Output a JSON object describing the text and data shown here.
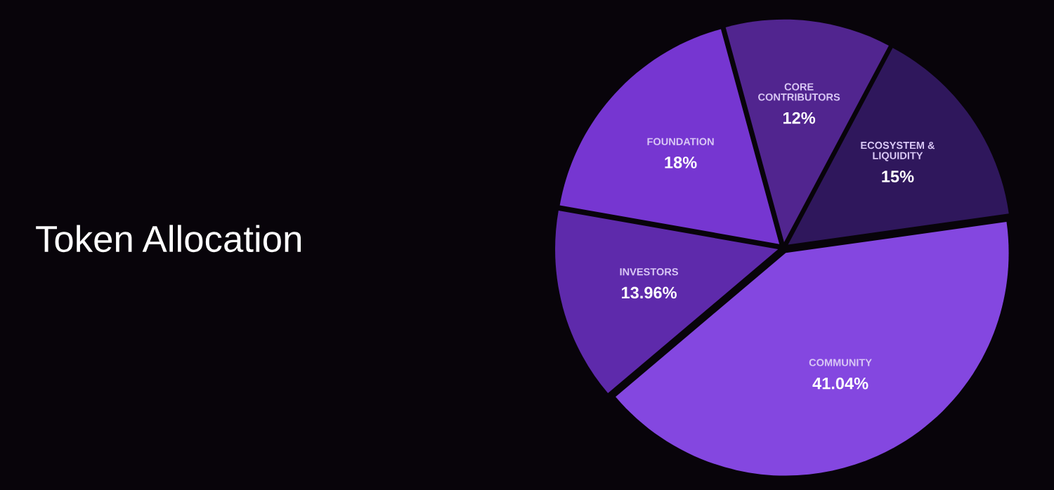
{
  "chart_data": {
    "type": "pie",
    "title": "Token Allocation",
    "categories": [
      "FOUNDATION",
      "CORE\nCONTRIBUTORS",
      "ECOSYSTEM &\nLIQUIDITY",
      "COMMUNITY",
      "INVESTORS"
    ],
    "values": [
      18,
      12,
      15,
      41.04,
      13.96
    ],
    "value_labels": [
      "18%",
      "12%",
      "15%",
      "41.04%",
      "13.96%"
    ],
    "colors": [
      "#7636d1",
      "#51258f",
      "#2f175c",
      "#8447e0",
      "#5e2aab"
    ]
  }
}
